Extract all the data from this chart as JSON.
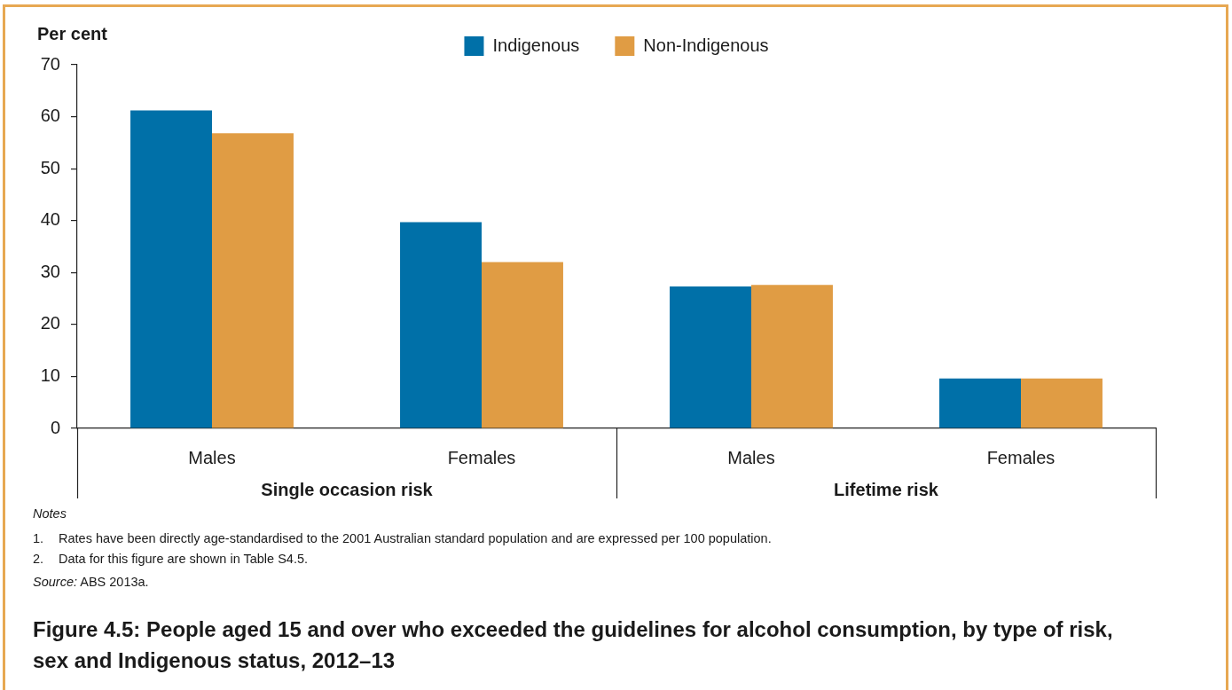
{
  "chart_data": {
    "type": "bar",
    "title": "Figure 4.5: People aged 15 and over who exceeded the guidelines for alcohol consumption, by type of risk, sex and Indigenous status, 2012–13",
    "ylabel": "Per cent",
    "categories": [
      "Males",
      "Females",
      "Males",
      "Females"
    ],
    "series": [
      {
        "name": "Indigenous",
        "color": "#0070a8",
        "values": [
          61.2,
          39.7,
          27.3,
          9.6
        ]
      },
      {
        "name": "Non-Indigenous",
        "color": "#e09c44",
        "values": [
          56.8,
          32.0,
          27.6,
          9.6
        ]
      }
    ],
    "ylim": [
      0,
      70
    ],
    "yticks": [
      0,
      10,
      20,
      30,
      40,
      50,
      60,
      70
    ],
    "legend": "top",
    "annotations": [
      {
        "text": "Single occasion risk"
      },
      {
        "text": "Lifetime risk"
      },
      "Notes",
      "1. Rates have been directly age-standardised to the 2001 Australian standard population and are expressed per 100 population.",
      "2. Data for this figure are shown in Table S4.5.",
      "Source: ABS 2013a."
    ]
  }
}
